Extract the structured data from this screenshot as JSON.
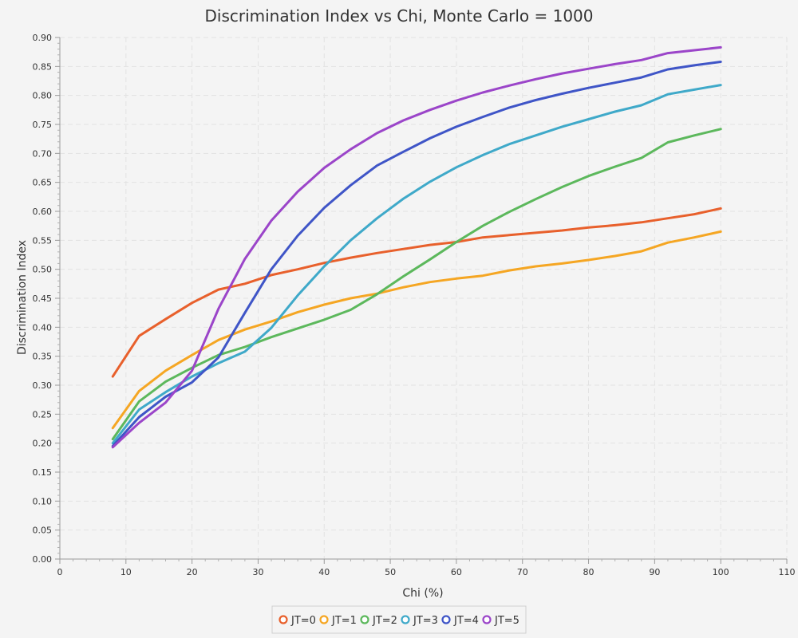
{
  "chart_data": {
    "type": "line",
    "title": "Discrimination Index vs Chi, Monte Carlo = 1000",
    "xlabel": "Chi (%)",
    "ylabel": "Discrimination Index",
    "xlim": [
      0,
      110
    ],
    "ylim": [
      0,
      0.9
    ],
    "x_ticks": [
      0,
      10,
      20,
      30,
      40,
      50,
      60,
      70,
      80,
      90,
      100,
      110
    ],
    "y_ticks": [
      0,
      0.05,
      0.1,
      0.15,
      0.2,
      0.25,
      0.3,
      0.35,
      0.4,
      0.45,
      0.5,
      0.55,
      0.6,
      0.65,
      0.7,
      0.75,
      0.8,
      0.85,
      0.9
    ],
    "grid": true,
    "legend_position": "bottom-center",
    "x": [
      8,
      12,
      16,
      20,
      24,
      28,
      32,
      36,
      40,
      44,
      48,
      52,
      56,
      60,
      64,
      68,
      72,
      76,
      80,
      84,
      88,
      92,
      96,
      100
    ],
    "series": [
      {
        "name": "JT=0",
        "color": "#e8602c",
        "values": [
          0.315,
          0.385,
          0.414,
          0.442,
          0.465,
          0.475,
          0.49,
          0.5,
          0.511,
          0.52,
          0.528,
          0.535,
          0.542,
          0.547,
          0.555,
          0.559,
          0.563,
          0.567,
          0.572,
          0.576,
          0.581,
          0.588,
          0.595,
          0.605
        ]
      },
      {
        "name": "JT=1",
        "color": "#f5a623",
        "values": [
          0.226,
          0.29,
          0.325,
          0.352,
          0.378,
          0.396,
          0.41,
          0.426,
          0.439,
          0.45,
          0.458,
          0.469,
          0.478,
          0.484,
          0.489,
          0.498,
          0.505,
          0.51,
          0.516,
          0.523,
          0.531,
          0.546,
          0.555,
          0.565
        ]
      },
      {
        "name": "JT=2",
        "color": "#5cb85c",
        "values": [
          0.207,
          0.272,
          0.306,
          0.33,
          0.352,
          0.366,
          0.383,
          0.398,
          0.413,
          0.43,
          0.457,
          0.488,
          0.517,
          0.547,
          0.575,
          0.599,
          0.621,
          0.642,
          0.661,
          0.677,
          0.692,
          0.719,
          0.731,
          0.742
        ]
      },
      {
        "name": "JT=3",
        "color": "#3fa9c9",
        "values": [
          0.2,
          0.258,
          0.288,
          0.315,
          0.338,
          0.358,
          0.399,
          0.455,
          0.505,
          0.55,
          0.588,
          0.622,
          0.651,
          0.676,
          0.697,
          0.716,
          0.731,
          0.746,
          0.759,
          0.772,
          0.783,
          0.802,
          0.81,
          0.818
        ]
      },
      {
        "name": "JT=4",
        "color": "#3f55c7",
        "values": [
          0.195,
          0.245,
          0.28,
          0.305,
          0.348,
          0.425,
          0.5,
          0.558,
          0.606,
          0.645,
          0.679,
          0.703,
          0.726,
          0.746,
          0.763,
          0.779,
          0.792,
          0.803,
          0.813,
          0.822,
          0.831,
          0.845,
          0.852,
          0.858
        ]
      },
      {
        "name": "JT=5",
        "color": "#9b45c9",
        "values": [
          0.193,
          0.235,
          0.27,
          0.325,
          0.432,
          0.518,
          0.584,
          0.634,
          0.675,
          0.707,
          0.735,
          0.757,
          0.775,
          0.791,
          0.805,
          0.817,
          0.828,
          0.838,
          0.846,
          0.854,
          0.861,
          0.873,
          0.878,
          0.883
        ]
      }
    ]
  }
}
